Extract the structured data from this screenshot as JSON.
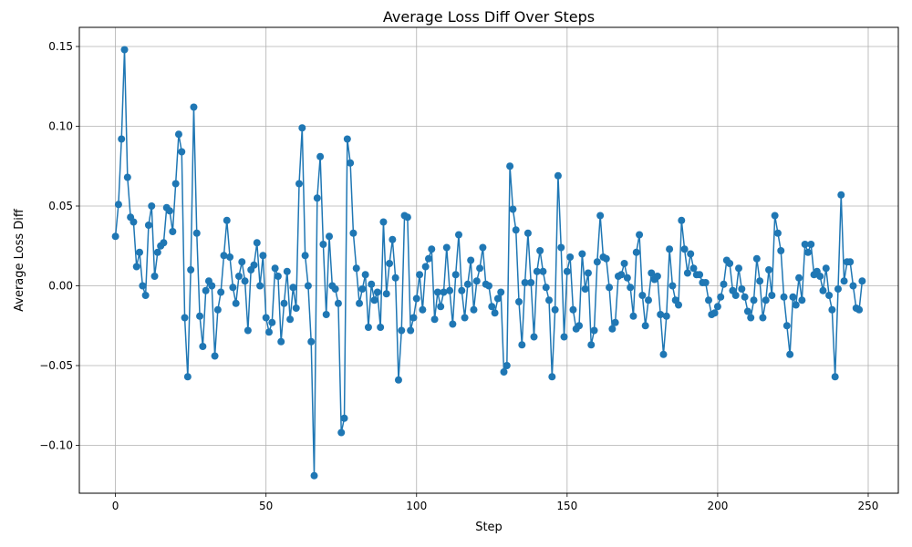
{
  "chart_data": {
    "type": "line",
    "title": "Average Loss Diff Over Steps",
    "xlabel": "Step",
    "ylabel": "Average Loss Diff",
    "xlim": [
      -12,
      260
    ],
    "ylim": [
      -0.13,
      0.162
    ],
    "xticks": [
      0,
      50,
      100,
      150,
      200,
      250
    ],
    "yticks": [
      -0.1,
      -0.05,
      0.0,
      0.05,
      0.1,
      0.15
    ],
    "xtick_labels": [
      "0",
      "50",
      "100",
      "150",
      "200",
      "250"
    ],
    "ytick_labels": [
      "−0.10",
      "−0.05",
      "0.00",
      "0.05",
      "0.10",
      "0.15"
    ],
    "grid": true,
    "marker": "circle",
    "color": "#1f77b4",
    "series": [
      {
        "values": [
          0.031,
          0.051,
          0.092,
          0.148,
          0.068,
          0.043,
          0.04,
          0.012,
          0.021,
          0.0,
          -0.006,
          0.038,
          0.05,
          0.006,
          0.021,
          0.025,
          0.027,
          0.049,
          0.047,
          0.034,
          0.064,
          0.095,
          0.084,
          -0.02,
          -0.057,
          0.01,
          0.112,
          0.033,
          -0.019,
          -0.038,
          -0.003,
          0.003,
          0.0,
          -0.044,
          -0.015,
          -0.004,
          0.019,
          0.041,
          0.018,
          -0.001,
          -0.011,
          0.006,
          0.015,
          0.003,
          -0.028,
          0.01,
          0.013,
          0.027,
          0.0,
          0.019,
          -0.02,
          -0.029,
          -0.023,
          0.011,
          0.006,
          -0.035,
          -0.011,
          0.009,
          -0.021,
          -0.001,
          -0.014,
          0.064,
          0.099,
          0.019,
          0.0,
          -0.035,
          -0.119,
          0.055,
          0.081,
          0.026,
          -0.018,
          0.031,
          0.0,
          -0.002,
          -0.011,
          -0.092,
          -0.083,
          0.092,
          0.077,
          0.033,
          0.011,
          -0.011,
          -0.002,
          0.007,
          -0.026,
          0.001,
          -0.009,
          -0.004,
          -0.026,
          0.04,
          -0.005,
          0.014,
          0.029,
          0.005,
          -0.059,
          -0.028,
          0.044,
          0.043,
          -0.028,
          -0.02,
          -0.008,
          0.007,
          -0.015,
          0.012,
          0.017,
          0.023,
          -0.021,
          -0.004,
          -0.013,
          -0.004,
          0.024,
          -0.003,
          -0.024,
          0.007,
          0.032,
          -0.003,
          -0.02,
          0.001,
          0.016,
          -0.015,
          0.003,
          0.011,
          0.024,
          0.001,
          0.0,
          -0.013,
          -0.017,
          -0.008,
          -0.004,
          -0.054,
          -0.05,
          0.075,
          0.048,
          0.035,
          -0.01,
          -0.037,
          0.002,
          0.033,
          0.002,
          -0.032,
          0.009,
          0.022,
          0.009,
          -0.001,
          -0.009,
          -0.057,
          -0.015,
          0.069,
          0.024,
          -0.032,
          0.009,
          0.018,
          -0.015,
          -0.027,
          -0.025,
          0.02,
          -0.002,
          0.008,
          -0.037,
          -0.028,
          0.015,
          0.044,
          0.018,
          0.017,
          -0.001,
          -0.027,
          -0.023,
          0.006,
          0.007,
          0.014,
          0.005,
          -0.001,
          -0.019,
          0.021,
          0.032,
          -0.006,
          -0.025,
          -0.009,
          0.008,
          0.004,
          0.006,
          -0.018,
          -0.043,
          -0.019,
          0.023,
          0.0,
          -0.009,
          -0.012,
          0.041,
          0.023,
          0.008,
          0.02,
          0.011,
          0.007,
          0.007,
          0.002,
          0.002,
          -0.009,
          -0.018,
          -0.017,
          -0.013,
          -0.007,
          0.001,
          0.016,
          0.014,
          -0.003,
          -0.006,
          0.011,
          -0.002,
          -0.007,
          -0.016,
          -0.02,
          -0.009,
          0.017,
          0.003,
          -0.02,
          -0.009,
          0.01,
          -0.006,
          0.044,
          0.033,
          0.022,
          -0.007,
          -0.025,
          -0.043,
          -0.007,
          -0.012,
          0.005,
          -0.009,
          0.026,
          0.021,
          0.026,
          0.007,
          0.009,
          0.006,
          -0.003,
          0.011,
          -0.006,
          -0.015,
          -0.057,
          -0.002,
          0.057,
          0.003,
          0.015,
          0.015,
          0.0,
          -0.014,
          -0.015,
          0.003
        ]
      }
    ]
  }
}
